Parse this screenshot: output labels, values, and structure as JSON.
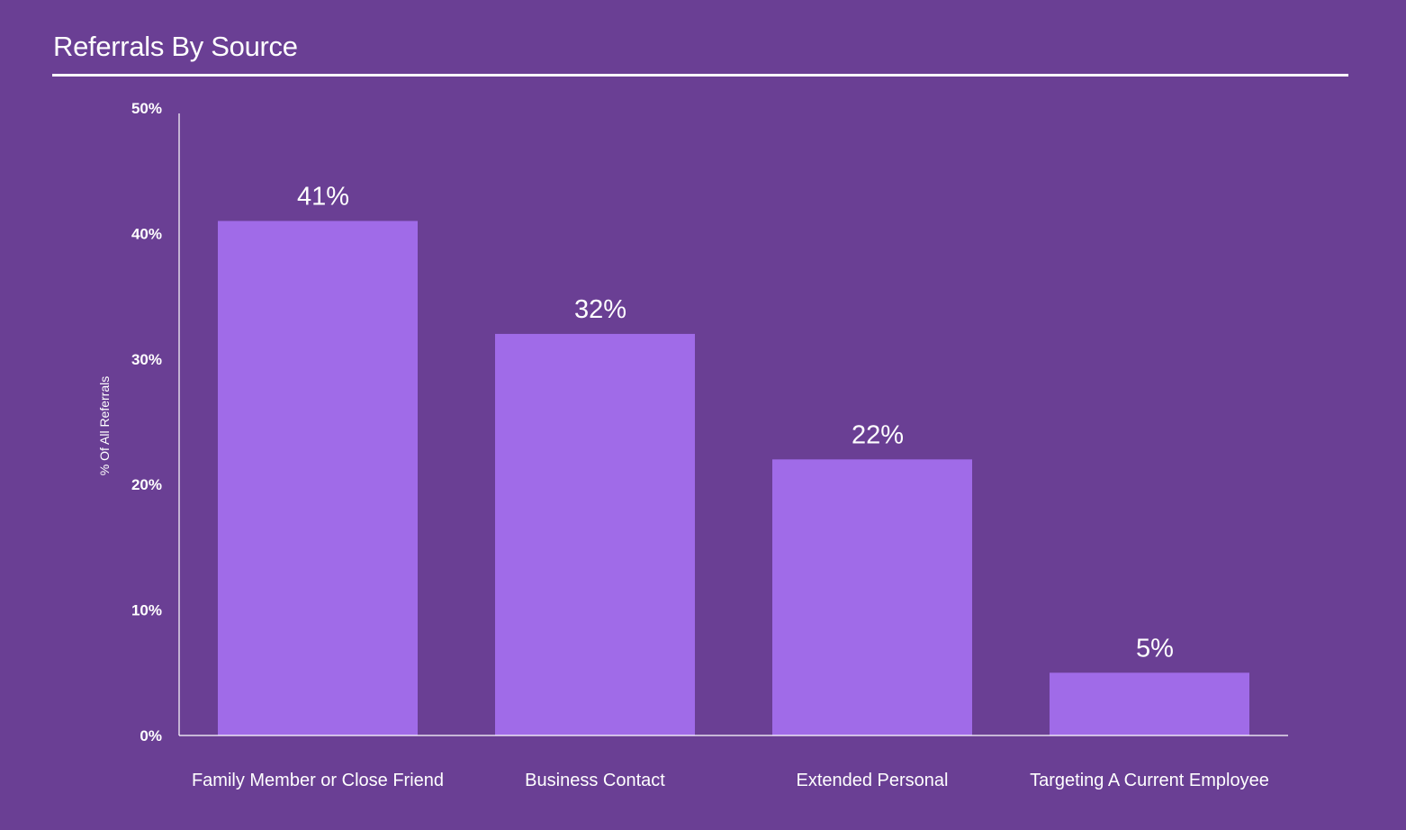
{
  "colors": {
    "background": "#6a3f94",
    "bar": "#a06be8",
    "text": "#ffffff",
    "axis": "#ffffff"
  },
  "chart_data": {
    "type": "bar",
    "title": "Referrals By Source",
    "xlabel": "",
    "ylabel": "% Of All Referrals",
    "categories": [
      "Family Member or Close Friend",
      "Business Contact",
      "Extended Personal",
      "Targeting A Current Employee"
    ],
    "values": [
      41,
      32,
      22,
      5
    ],
    "data_labels": [
      "41%",
      "32%",
      "22%",
      "5%"
    ],
    "ylim": [
      0,
      50
    ],
    "yticks": [
      0,
      10,
      20,
      30,
      40,
      50
    ],
    "ytick_labels": [
      "0%",
      "10%",
      "20%",
      "30%",
      "40%",
      "50%"
    ],
    "grid": false,
    "legend": "none"
  }
}
